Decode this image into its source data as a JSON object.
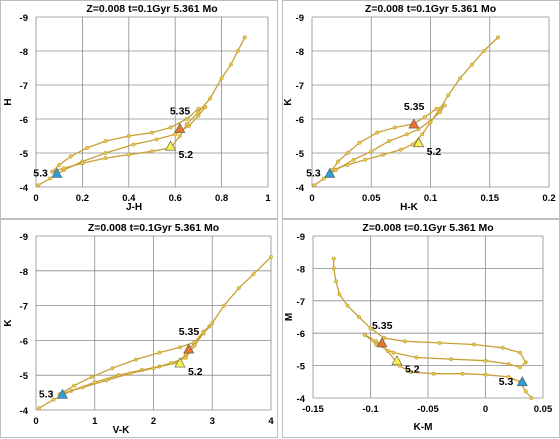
{
  "chart_data": [
    {
      "type": "line",
      "title": "Z=0.008  t=0.1Gyr 5.361 Mo",
      "xlabel": "J-H",
      "ylabel": "H",
      "xlim": [
        0,
        1
      ],
      "ylim": [
        -9,
        -4
      ],
      "y_inverted": true,
      "grid": true,
      "xticks": [
        0,
        0.2,
        0.4,
        0.6,
        0.8,
        1
      ],
      "xtick_labels": [
        "0",
        "0.2",
        "0.4",
        "0.6",
        "0.8",
        "1"
      ],
      "yticks": [
        -9,
        -8,
        -7,
        -6,
        -5,
        -4
      ],
      "ytick_labels": [
        "-9",
        "-8",
        "-7",
        "-6",
        "-5",
        "-4"
      ],
      "series_color": "#c8a037",
      "marker_color": "#e6c64a",
      "series": [
        {
          "values": [
            [
              0.01,
              -4.05
            ],
            [
              0.06,
              -4.25
            ],
            [
              0.12,
              -4.5
            ],
            [
              0.2,
              -4.75
            ],
            [
              0.3,
              -5.0
            ],
            [
              0.42,
              -5.25
            ],
            [
              0.52,
              -5.4
            ],
            [
              0.6,
              -5.55
            ],
            [
              0.66,
              -5.8
            ],
            [
              0.7,
              -6.1
            ],
            [
              0.73,
              -6.35
            ],
            [
              0.7,
              -6.3
            ],
            [
              0.65,
              -6.0
            ],
            [
              0.58,
              -5.75
            ],
            [
              0.5,
              -5.6
            ],
            [
              0.4,
              -5.5
            ],
            [
              0.3,
              -5.35
            ],
            [
              0.22,
              -5.15
            ],
            [
              0.15,
              -4.9
            ],
            [
              0.1,
              -4.65
            ],
            [
              0.07,
              -4.45
            ]
          ]
        },
        {
          "values": [
            [
              0.07,
              -4.45
            ],
            [
              0.12,
              -4.55
            ],
            [
              0.2,
              -4.7
            ],
            [
              0.3,
              -4.85
            ],
            [
              0.4,
              -4.95
            ],
            [
              0.5,
              -5.05
            ],
            [
              0.58,
              -5.15
            ],
            [
              0.62,
              -5.5
            ],
            [
              0.65,
              -5.85
            ],
            [
              0.7,
              -6.2
            ],
            [
              0.75,
              -6.6
            ],
            [
              0.8,
              -7.2
            ],
            [
              0.84,
              -7.6
            ],
            [
              0.87,
              -8.0
            ],
            [
              0.9,
              -8.4
            ]
          ]
        }
      ],
      "markers": [
        {
          "label": "5.3",
          "x": 0.09,
          "y": -4.4,
          "color": "#2e9fd6"
        },
        {
          "label": "5.35",
          "x": 0.62,
          "y": -5.72,
          "color": "#e8772e"
        },
        {
          "label": "5.2",
          "x": 0.58,
          "y": -5.2,
          "color": "#f7f04a"
        }
      ]
    },
    {
      "type": "line",
      "title": "Z=0.008  t=0.1Gyr 5.361 Mo",
      "xlabel": "H-K",
      "ylabel": "K",
      "xlim": [
        0,
        0.2
      ],
      "ylim": [
        -9,
        -4
      ],
      "y_inverted": true,
      "grid": true,
      "xticks": [
        0,
        0.05,
        0.1,
        0.15,
        0.2
      ],
      "xtick_labels": [
        "0",
        "0.05",
        "0.1",
        "0.15",
        "0.2"
      ],
      "yticks": [
        -9,
        -8,
        -7,
        -6,
        -5,
        -4
      ],
      "ytick_labels": [
        "-9",
        "-8",
        "-7",
        "-6",
        "-5",
        "-4"
      ],
      "series_color": "#c8a037",
      "marker_color": "#e6c64a",
      "series": [
        {
          "values": [
            [
              0.002,
              -4.05
            ],
            [
              0.01,
              -4.25
            ],
            [
              0.02,
              -4.5
            ],
            [
              0.035,
              -4.8
            ],
            [
              0.05,
              -5.05
            ],
            [
              0.065,
              -5.35
            ],
            [
              0.08,
              -5.55
            ],
            [
              0.09,
              -5.7
            ],
            [
              0.1,
              -5.95
            ],
            [
              0.108,
              -6.2
            ],
            [
              0.112,
              -6.4
            ],
            [
              0.105,
              -6.3
            ],
            [
              0.095,
              -6.05
            ],
            [
              0.085,
              -5.85
            ],
            [
              0.07,
              -5.75
            ],
            [
              0.055,
              -5.6
            ],
            [
              0.04,
              -5.3
            ],
            [
              0.03,
              -5.0
            ],
            [
              0.022,
              -4.75
            ],
            [
              0.017,
              -4.5
            ]
          ]
        },
        {
          "values": [
            [
              0.017,
              -4.5
            ],
            [
              0.03,
              -4.65
            ],
            [
              0.045,
              -4.8
            ],
            [
              0.06,
              -4.95
            ],
            [
              0.075,
              -5.1
            ],
            [
              0.085,
              -5.25
            ],
            [
              0.093,
              -5.55
            ],
            [
              0.1,
              -5.9
            ],
            [
              0.108,
              -6.3
            ],
            [
              0.115,
              -6.7
            ],
            [
              0.125,
              -7.2
            ],
            [
              0.135,
              -7.6
            ],
            [
              0.145,
              -8.0
            ],
            [
              0.157,
              -8.4
            ]
          ]
        }
      ],
      "markers": [
        {
          "label": "5.3",
          "x": 0.015,
          "y": -4.4,
          "color": "#2e9fd6"
        },
        {
          "label": "5.35",
          "x": 0.086,
          "y": -5.85,
          "color": "#e8772e"
        },
        {
          "label": "5.2",
          "x": 0.09,
          "y": -5.3,
          "color": "#f7f04a"
        }
      ]
    },
    {
      "type": "line",
      "title": "Z=0.008  t=0.1Gyr 5.361 Mo",
      "xlabel": "V-K",
      "ylabel": "K",
      "xlim": [
        0,
        4
      ],
      "ylim": [
        -9,
        -4
      ],
      "y_inverted": true,
      "grid": true,
      "xticks": [
        0,
        1,
        2,
        3,
        4
      ],
      "xtick_labels": [
        "0",
        "1",
        "2",
        "3",
        "4"
      ],
      "yticks": [
        -9,
        -8,
        -7,
        -6,
        -5,
        -4
      ],
      "ytick_labels": [
        "-9",
        "-8",
        "-7",
        "-6",
        "-5",
        "-4"
      ],
      "series_color": "#c8a037",
      "marker_color": "#e6c64a",
      "series": [
        {
          "values": [
            [
              0.05,
              -4.05
            ],
            [
              0.3,
              -4.3
            ],
            [
              0.6,
              -4.55
            ],
            [
              1.0,
              -4.8
            ],
            [
              1.4,
              -5.0
            ],
            [
              1.8,
              -5.15
            ],
            [
              2.1,
              -5.25
            ],
            [
              2.4,
              -5.35
            ],
            [
              2.55,
              -5.6
            ],
            [
              2.7,
              -5.95
            ],
            [
              2.85,
              -6.25
            ],
            [
              2.95,
              -6.4
            ],
            [
              2.85,
              -6.2
            ],
            [
              2.7,
              -5.95
            ],
            [
              2.45,
              -5.8
            ],
            [
              2.1,
              -5.65
            ],
            [
              1.7,
              -5.45
            ],
            [
              1.3,
              -5.2
            ],
            [
              0.95,
              -4.95
            ],
            [
              0.65,
              -4.7
            ],
            [
              0.4,
              -4.45
            ]
          ]
        },
        {
          "values": [
            [
              0.4,
              -4.45
            ],
            [
              0.8,
              -4.65
            ],
            [
              1.2,
              -4.85
            ],
            [
              1.6,
              -5.05
            ],
            [
              2.0,
              -5.2
            ],
            [
              2.3,
              -5.35
            ],
            [
              2.55,
              -5.5
            ],
            [
              2.7,
              -5.85
            ],
            [
              2.85,
              -6.2
            ],
            [
              3.0,
              -6.5
            ],
            [
              3.2,
              -7.0
            ],
            [
              3.45,
              -7.5
            ],
            [
              3.7,
              -7.9
            ],
            [
              4.0,
              -8.4
            ]
          ]
        }
      ],
      "markers": [
        {
          "label": "5.3",
          "x": 0.45,
          "y": -4.45,
          "color": "#2e9fd6"
        },
        {
          "label": "5.35",
          "x": 2.6,
          "y": -5.75,
          "color": "#e8772e"
        },
        {
          "label": "5.2",
          "x": 2.45,
          "y": -5.35,
          "color": "#f7f04a"
        }
      ]
    },
    {
      "type": "line",
      "title": "Z=0.008  t=0.1Gyr 5.361 Mo",
      "xlabel": "K-M",
      "ylabel": "M",
      "xlim": [
        -0.15,
        0.05
      ],
      "ylim": [
        -9,
        -4
      ],
      "y_inverted": true,
      "grid": true,
      "xticks": [
        -0.15,
        -0.1,
        -0.05,
        0,
        0.05
      ],
      "xtick_labels": [
        "-0.15",
        "-0.1",
        "-0.05",
        "0",
        "0.05"
      ],
      "yticks": [
        -9,
        -8,
        -7,
        -6,
        -5,
        -4
      ],
      "ytick_labels": [
        "-9",
        "-8",
        "-7",
        "-6",
        "-5",
        "-4"
      ],
      "series_color": "#c8a037",
      "marker_color": "#e6c64a",
      "series": [
        {
          "values": [
            [
              -0.132,
              -8.3
            ],
            [
              -0.132,
              -8.0
            ],
            [
              -0.13,
              -7.6
            ],
            [
              -0.127,
              -7.2
            ],
            [
              -0.12,
              -6.85
            ],
            [
              -0.11,
              -6.5
            ],
            [
              -0.1,
              -6.15
            ],
            [
              -0.088,
              -5.85
            ],
            [
              -0.07,
              -5.75
            ],
            [
              -0.04,
              -5.7
            ],
            [
              -0.01,
              -5.65
            ],
            [
              0.015,
              -5.55
            ],
            [
              0.03,
              -5.4
            ],
            [
              0.035,
              -5.1
            ],
            [
              0.03,
              -4.95
            ],
            [
              0.02,
              -5.05
            ],
            [
              0.0,
              -5.15
            ],
            [
              -0.03,
              -5.2
            ],
            [
              -0.06,
              -5.25
            ],
            [
              -0.08,
              -5.4
            ],
            [
              -0.095,
              -5.65
            ],
            [
              -0.105,
              -5.95
            ]
          ]
        },
        {
          "values": [
            [
              -0.105,
              -5.95
            ],
            [
              -0.095,
              -5.75
            ],
            [
              -0.085,
              -5.45
            ],
            [
              -0.075,
              -5.0
            ],
            [
              -0.065,
              -4.8
            ],
            [
              -0.045,
              -4.75
            ],
            [
              -0.02,
              -4.75
            ],
            [
              0.0,
              -4.72
            ],
            [
              0.02,
              -4.65
            ],
            [
              0.03,
              -4.5
            ],
            [
              0.035,
              -4.2
            ],
            [
              0.04,
              -4.0
            ]
          ]
        }
      ],
      "markers": [
        {
          "label": "5.3",
          "x": 0.032,
          "y": -4.5,
          "color": "#2e9fd6"
        },
        {
          "label": "5.35",
          "x": -0.09,
          "y": -5.7,
          "color": "#e8772e"
        },
        {
          "label": "5.2",
          "x": -0.077,
          "y": -5.15,
          "color": "#f7f04a"
        }
      ]
    }
  ]
}
